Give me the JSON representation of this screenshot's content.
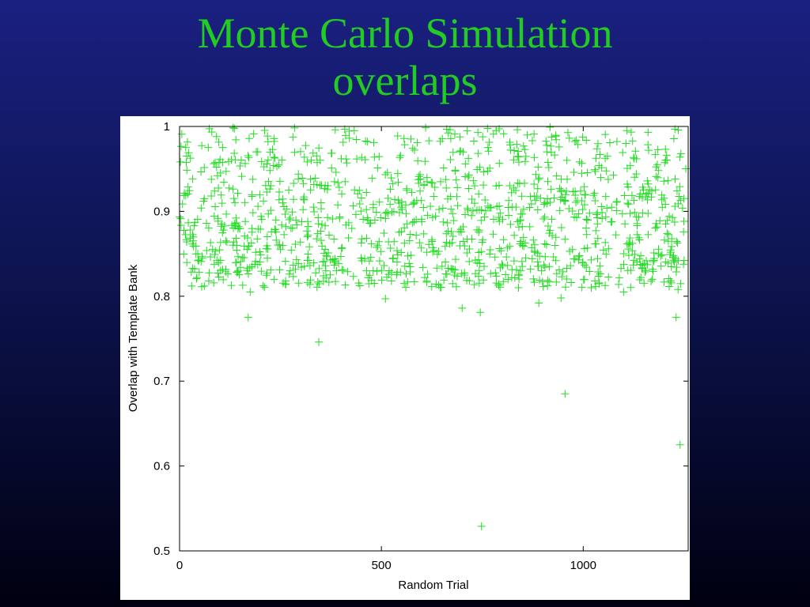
{
  "slide": {
    "title_line1": "Monte Carlo Simulation",
    "title_line2": "overlaps"
  },
  "colors": {
    "title": "#22cc22",
    "points": "#22dd22",
    "background_top": "#1a2080",
    "background_bottom": "#000010"
  },
  "chart_data": {
    "type": "scatter",
    "xlabel": "Random Trial",
    "ylabel": "Overlap with Template Bank",
    "xlim": [
      0,
      1260
    ],
    "ylim": [
      0.5,
      1
    ],
    "xticks": [
      {
        "value": 0,
        "label": "0"
      },
      {
        "value": 500,
        "label": "500"
      },
      {
        "value": 1000,
        "label": "1000"
      }
    ],
    "yticks": [
      {
        "value": 0.5,
        "label": "0.5"
      },
      {
        "value": 0.6,
        "label": "0.6"
      },
      {
        "value": 0.7,
        "label": "0.7"
      },
      {
        "value": 0.8,
        "label": "0.8"
      },
      {
        "value": 0.9,
        "label": "0.9"
      },
      {
        "value": 1.0,
        "label": "1"
      }
    ],
    "marker": "plus",
    "grid": false,
    "outliers": [
      {
        "x": 170,
        "y": 0.775
      },
      {
        "x": 345,
        "y": 0.746
      },
      {
        "x": 700,
        "y": 0.786
      },
      {
        "x": 745,
        "y": 0.781
      },
      {
        "x": 748,
        "y": 0.529
      },
      {
        "x": 890,
        "y": 0.792
      },
      {
        "x": 955,
        "y": 0.685
      },
      {
        "x": 945,
        "y": 0.798
      },
      {
        "x": 1230,
        "y": 0.775
      },
      {
        "x": 1240,
        "y": 0.625
      },
      {
        "x": 30,
        "y": 0.812
      },
      {
        "x": 175,
        "y": 0.805
      },
      {
        "x": 510,
        "y": 0.797
      },
      {
        "x": 1020,
        "y": 0.81
      },
      {
        "x": 1100,
        "y": 0.805
      },
      {
        "x": 1235,
        "y": 0.808
      }
    ],
    "cluster": {
      "n_points": 1220,
      "x_range": [
        0,
        1255
      ],
      "y_range": [
        0.81,
        1.0
      ],
      "description_values": "dense band of trials with overlap between 0.81 and 1.0"
    }
  }
}
